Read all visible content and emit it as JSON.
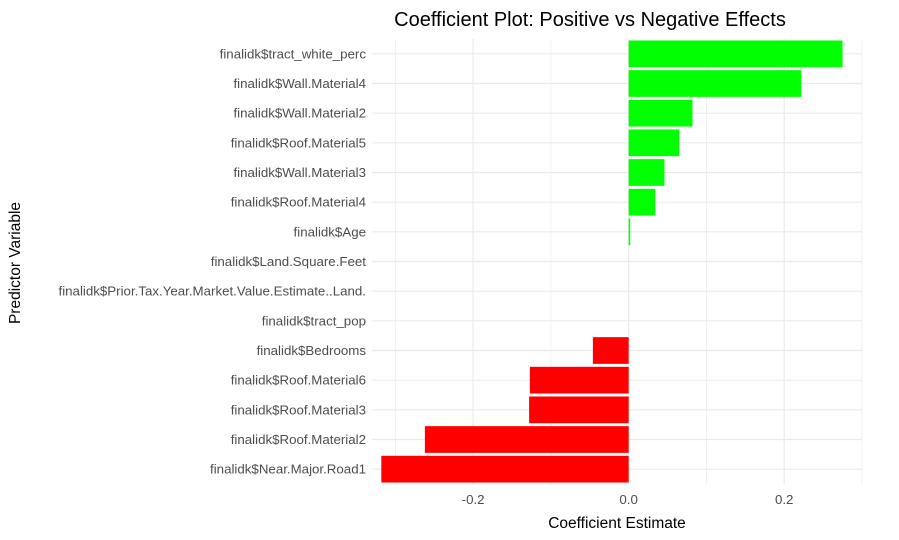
{
  "chart_data": {
    "type": "bar",
    "orientation": "horizontal",
    "title": "Coefficient Plot: Positive vs Negative Effects",
    "xlabel": "Coefficient Estimate",
    "ylabel": "Predictor Variable",
    "xlim": [
      -0.33,
      0.3
    ],
    "x_ticks": [
      -0.2,
      0.0,
      0.2
    ],
    "x_tick_labels": [
      "-0.2",
      "0.0",
      "0.2"
    ],
    "grid": true,
    "colors": {
      "positive": "#00FF00",
      "negative": "#FF0000",
      "gridline": "#ebebeb"
    },
    "categories": [
      "finalidk$tract_white_perc",
      "finalidk$Wall.Material4",
      "finalidk$Wall.Material2",
      "finalidk$Roof.Material5",
      "finalidk$Wall.Material3",
      "finalidk$Roof.Material4",
      "finalidk$Age",
      "finalidk$Land.Square.Feet",
      "finalidk$Prior.Tax.Year.Market.Value.Estimate..Land.",
      "finalidk$tract_pop",
      "finalidk$Bedrooms",
      "finalidk$Roof.Material6",
      "finalidk$Roof.Material3",
      "finalidk$Roof.Material2",
      "finalidk$Near.Major.Road1"
    ],
    "values": [
      0.275,
      0.222,
      0.082,
      0.065,
      0.046,
      0.034,
      0.002,
      0.0,
      0.0,
      0.0,
      -0.046,
      -0.127,
      -0.128,
      -0.262,
      -0.318
    ]
  }
}
